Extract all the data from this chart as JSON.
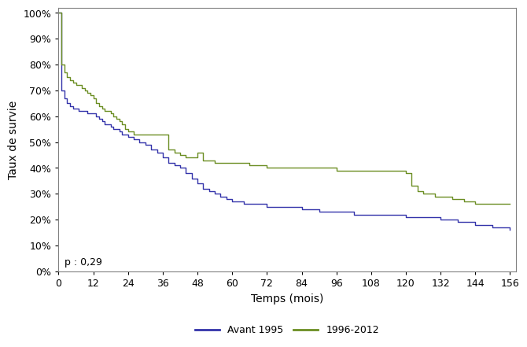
{
  "title": "",
  "xlabel": "Temps (mois)",
  "ylabel": "Taux de survie",
  "pvalue_text": "p : 0,29",
  "legend_labels": [
    "Avant 1995",
    "1996-2012"
  ],
  "line_colors": [
    "#3333AA",
    "#6B8E23"
  ],
  "xticks": [
    0,
    12,
    24,
    36,
    48,
    60,
    72,
    84,
    96,
    108,
    120,
    132,
    144,
    156
  ],
  "yticks": [
    0,
    10,
    20,
    30,
    40,
    50,
    60,
    70,
    80,
    90,
    100
  ],
  "xlim": [
    0,
    158
  ],
  "ylim": [
    0,
    102
  ],
  "curve1_x": [
    0,
    1,
    2,
    3,
    4,
    5,
    6,
    7,
    8,
    9,
    10,
    11,
    12,
    13,
    14,
    15,
    16,
    17,
    18,
    19,
    20,
    21,
    22,
    23,
    24,
    25,
    26,
    27,
    28,
    30,
    32,
    34,
    36,
    38,
    40,
    42,
    44,
    46,
    48,
    50,
    52,
    54,
    56,
    58,
    60,
    64,
    68,
    72,
    76,
    80,
    84,
    90,
    96,
    102,
    108,
    114,
    120,
    126,
    132,
    138,
    144,
    150,
    156
  ],
  "curve1_y": [
    100,
    70,
    67,
    65,
    64,
    63,
    63,
    62,
    62,
    62,
    61,
    61,
    61,
    60,
    59,
    58,
    57,
    57,
    56,
    55,
    55,
    54,
    53,
    53,
    52,
    52,
    51,
    51,
    50,
    49,
    47,
    46,
    44,
    42,
    41,
    40,
    38,
    36,
    34,
    32,
    31,
    30,
    29,
    28,
    27,
    26,
    26,
    25,
    25,
    25,
    24,
    23,
    23,
    22,
    22,
    22,
    21,
    21,
    20,
    19,
    18,
    17,
    16
  ],
  "curve2_x": [
    0,
    1,
    2,
    3,
    4,
    5,
    6,
    7,
    8,
    9,
    10,
    11,
    12,
    13,
    14,
    15,
    16,
    17,
    18,
    19,
    20,
    21,
    22,
    23,
    24,
    25,
    26,
    27,
    28,
    30,
    32,
    34,
    36,
    38,
    40,
    42,
    44,
    46,
    48,
    50,
    52,
    54,
    56,
    58,
    60,
    66,
    72,
    78,
    84,
    90,
    96,
    102,
    108,
    114,
    120,
    122,
    124,
    126,
    130,
    132,
    136,
    140,
    144,
    148,
    152,
    156
  ],
  "curve2_y": [
    100,
    80,
    77,
    75,
    74,
    73,
    72,
    72,
    71,
    70,
    69,
    68,
    67,
    65,
    64,
    63,
    62,
    62,
    61,
    60,
    59,
    58,
    57,
    55,
    54,
    54,
    53,
    53,
    53,
    53,
    53,
    53,
    53,
    47,
    46,
    45,
    44,
    44,
    46,
    43,
    43,
    42,
    42,
    42,
    42,
    41,
    40,
    40,
    40,
    40,
    39,
    39,
    39,
    39,
    38,
    33,
    31,
    30,
    29,
    29,
    28,
    27,
    26,
    26,
    26,
    26
  ],
  "background_color": "#ffffff",
  "axes_color": "#808080",
  "tick_color": "#000000",
  "fontsize_ticks": 9,
  "fontsize_labels": 10,
  "fontsize_pvalue": 9,
  "spine_linewidth": 0.8,
  "line_linewidth": 1.0
}
